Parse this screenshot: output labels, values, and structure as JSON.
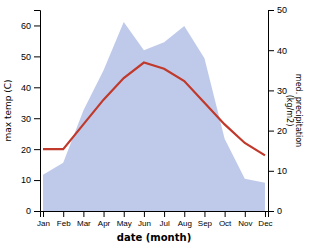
{
  "chart_data": {
    "type": "line",
    "categories": [
      "Jan",
      "Feb",
      "Mar",
      "Apr",
      "May",
      "Jun",
      "Jul",
      "Aug",
      "Sep",
      "Oct",
      "Nov",
      "Dec"
    ],
    "series": [
      {
        "name": "max temp (C)",
        "type": "line",
        "color": "#c0392b",
        "axis": "y",
        "values": [
          20,
          20,
          28,
          36,
          43,
          48,
          46,
          42,
          35,
          28,
          22,
          18
        ]
      },
      {
        "name": "med. precipitation\n(kg/m2)",
        "type": "area",
        "color": "#b8c4e8",
        "axis": "y2",
        "values": [
          9,
          12,
          25,
          35,
          47,
          40,
          42,
          46,
          38,
          18,
          8,
          7
        ]
      }
    ],
    "x_label": "date (month)",
    "y_label": "max temp (C)",
    "y2_label": "med. precipitation\n(kg/m2)",
    "ylim": [
      0,
      65
    ],
    "yticks": [
      0,
      10,
      20,
      30,
      40,
      50,
      60
    ],
    "y2lim": [
      0,
      50
    ],
    "y2ticks": [
      0,
      10,
      20,
      30,
      40,
      50
    ],
    "grid": false
  }
}
